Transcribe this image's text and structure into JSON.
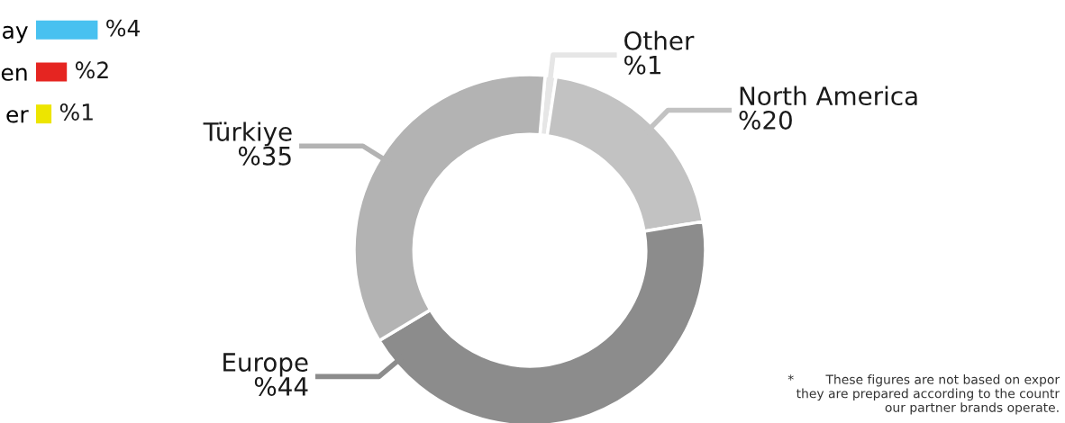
{
  "chart_data": [
    {
      "type": "donut",
      "categories": [
        "Other",
        "North America",
        "Europe",
        "Türkiye"
      ],
      "values": [
        1,
        20,
        44,
        35
      ],
      "colors": [
        "#e6e6e6",
        "#c2c2c2",
        "#8c8c8c",
        "#b3b3b3"
      ],
      "value_labels": [
        "%1",
        "%20",
        "%44",
        "%35"
      ],
      "annotations": [
        "*        These figures are not based on expor\nthey are prepared according to the countr\nour partner brands operate."
      ]
    },
    {
      "type": "bar",
      "orientation": "horizontal",
      "categories": [
        "ay",
        "en",
        "er"
      ],
      "values": [
        4,
        2,
        1
      ],
      "colors": [
        "#48c1f0",
        "#e52521",
        "#ede500"
      ],
      "value_labels": [
        "%4",
        "%2",
        "%1"
      ]
    }
  ]
}
